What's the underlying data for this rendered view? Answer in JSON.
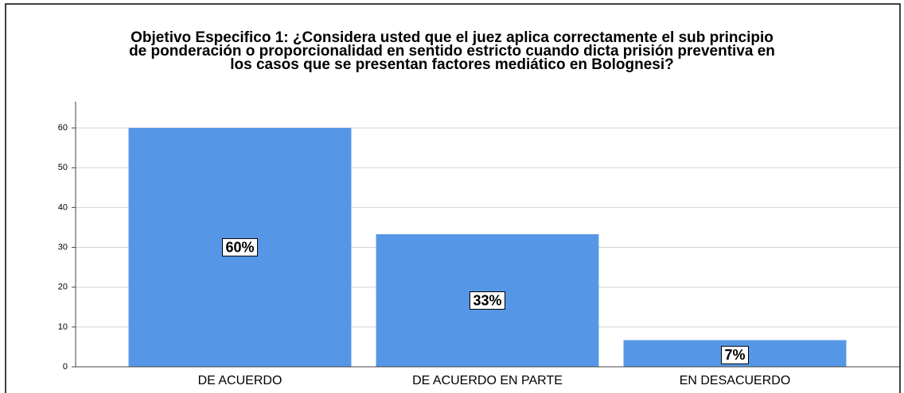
{
  "chart_data": {
    "type": "bar",
    "title": [
      "Objetivo Especifico 1: ¿Considera usted que el juez aplica correctamente el sub principio",
      "de ponderación o proporcionalidad en sentido estricto cuando dicta prisión preventiva en",
      "los casos que se presentan factores mediático en Bolognesi?"
    ],
    "categories": [
      "DE ACUERDO",
      "DE ACUERDO EN PARTE",
      "EN DESACUERDO"
    ],
    "values": [
      60,
      33.3,
      6.7
    ],
    "value_labels": [
      "60%",
      "33%",
      "7%"
    ],
    "color": "#5597e6",
    "ylim": [
      0,
      66.6
    ],
    "yticks": [
      0,
      10,
      20,
      30,
      40,
      50,
      60
    ],
    "grid": true
  }
}
